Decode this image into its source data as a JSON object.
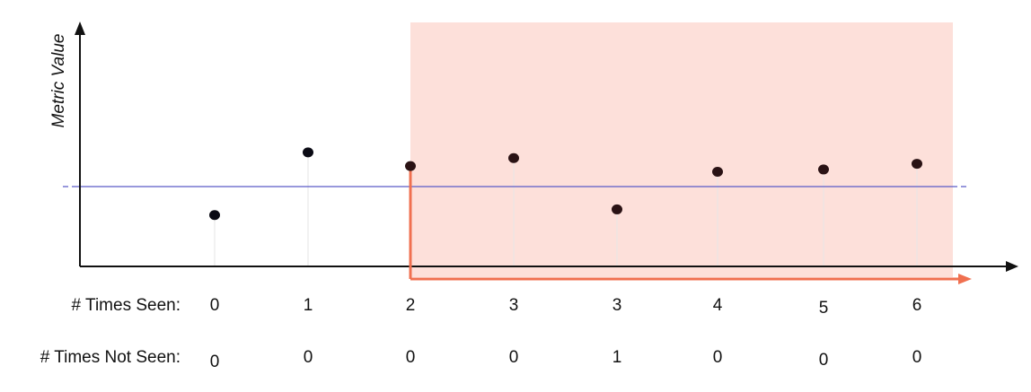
{
  "chart_data": {
    "type": "scatter",
    "y_axis_label": "Metric Value",
    "row_labels": {
      "times_seen": "# Times Seen:",
      "times_not_seen": "# Times Not Seen:"
    },
    "points": [
      {
        "metric": 2.25,
        "times_seen": "0",
        "times_not_seen": "0",
        "in_region": false
      },
      {
        "metric": 5.0,
        "times_seen": "1",
        "times_not_seen": "0",
        "in_region": false
      },
      {
        "metric": 4.4,
        "times_seen": "2",
        "times_not_seen": "0",
        "in_region": true
      },
      {
        "metric": 4.75,
        "times_seen": "3",
        "times_not_seen": "0",
        "in_region": true
      },
      {
        "metric": 2.5,
        "times_seen": "3",
        "times_not_seen": "1",
        "in_region": true
      },
      {
        "metric": 4.15,
        "times_seen": "4",
        "times_not_seen": "0",
        "in_region": true
      },
      {
        "metric": 4.25,
        "times_seen": "5",
        "times_not_seen": "0",
        "in_region": true
      },
      {
        "metric": 4.5,
        "times_seen": "6",
        "times_not_seen": "0",
        "in_region": true
      }
    ],
    "threshold": 3.5,
    "y_range": [
      0,
      10.5
    ],
    "colors": {
      "point": "#0a0a14",
      "point_in_region": "#2a1214",
      "threshold_line": "#5a5ac8",
      "region_fill": "#fde0da",
      "region_arrow": "#f07050",
      "axis": "#111111",
      "stem": "#e6e6e6"
    }
  }
}
